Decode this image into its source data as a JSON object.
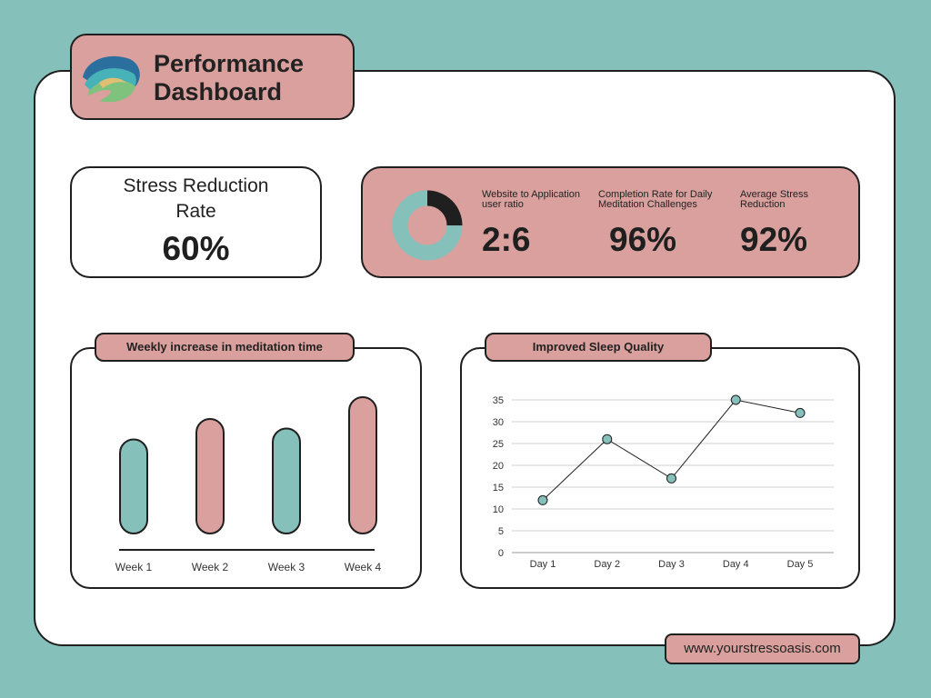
{
  "header": {
    "title": "Performance\nDashboard",
    "logo_icon": "swirl-logo-icon"
  },
  "stress_card": {
    "label": "Stress Reduction\nRate",
    "value": "60%"
  },
  "metrics": [
    {
      "label": "Website to Application\nuser ratio",
      "value": "2:6"
    },
    {
      "label": "Completion Rate for Daily\nMeditation Challenges",
      "value": "96%"
    },
    {
      "label": "Average Stress\nReduction",
      "value": "92%"
    }
  ],
  "footer": {
    "url": "www.yourstressoasis.com"
  },
  "colors": {
    "teal": "#85c0bb",
    "pink": "#d9a09d",
    "dark": "#1f1f1f"
  },
  "chart_data": [
    {
      "type": "pie",
      "title": "",
      "values": [
        2,
        6
      ],
      "colors": [
        "#1f1f1f",
        "#85c0bb"
      ]
    },
    {
      "type": "bar",
      "title": "Weekly increase in meditation time",
      "categories": [
        "Week 1",
        "Week 2",
        "Week 3",
        "Week 4"
      ],
      "values": [
        69,
        84,
        77,
        100
      ],
      "colors": [
        "#85c0bb",
        "#d9a09d",
        "#85c0bb",
        "#d9a09d"
      ],
      "ylim": [
        0,
        100
      ]
    },
    {
      "type": "line",
      "title": "Improved Sleep Quality",
      "categories": [
        "Day 1",
        "Day 2",
        "Day 3",
        "Day 4",
        "Day 5"
      ],
      "values": [
        12,
        26,
        17,
        35,
        32
      ],
      "yticks": [
        0,
        5,
        10,
        15,
        20,
        25,
        30,
        35
      ],
      "ylim": [
        0,
        35
      ],
      "grid": true
    }
  ]
}
